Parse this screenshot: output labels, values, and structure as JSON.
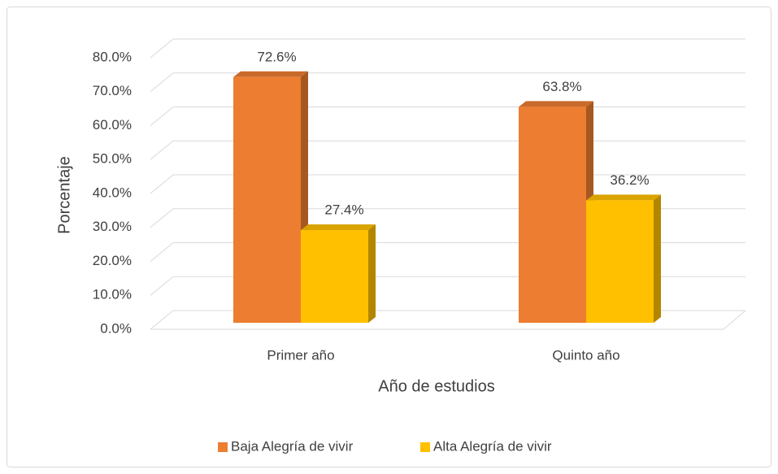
{
  "chart_data": {
    "type": "bar3d",
    "categories": [
      "Primer año",
      "Quinto año"
    ],
    "series": [
      {
        "name": "Baja Alegría de vivir",
        "color": "#ed7d31",
        "values": [
          72.6,
          63.8
        ],
        "value_labels": [
          "72.6%",
          "63.8%"
        ]
      },
      {
        "name": "Alta Alegría de vivir",
        "color": "#ffc000",
        "values": [
          27.4,
          36.2
        ],
        "value_labels": [
          "27.4%",
          "36.2%"
        ]
      }
    ],
    "ylim": [
      0,
      80
    ],
    "yticks": [
      {
        "value": 0,
        "label": "0.0%"
      },
      {
        "value": 10,
        "label": "10.0%"
      },
      {
        "value": 20,
        "label": "20.0%"
      },
      {
        "value": 30,
        "label": "30.0%"
      },
      {
        "value": 40,
        "label": "40.0%"
      },
      {
        "value": 50,
        "label": "50.0%"
      },
      {
        "value": 60,
        "label": "60.0%"
      },
      {
        "value": 70,
        "label": "70.0%"
      },
      {
        "value": 80,
        "label": "80.0%"
      }
    ],
    "xlabel": "Año de estudios",
    "ylabel": "Porcentaje",
    "grid": true,
    "legend": "bottom"
  }
}
